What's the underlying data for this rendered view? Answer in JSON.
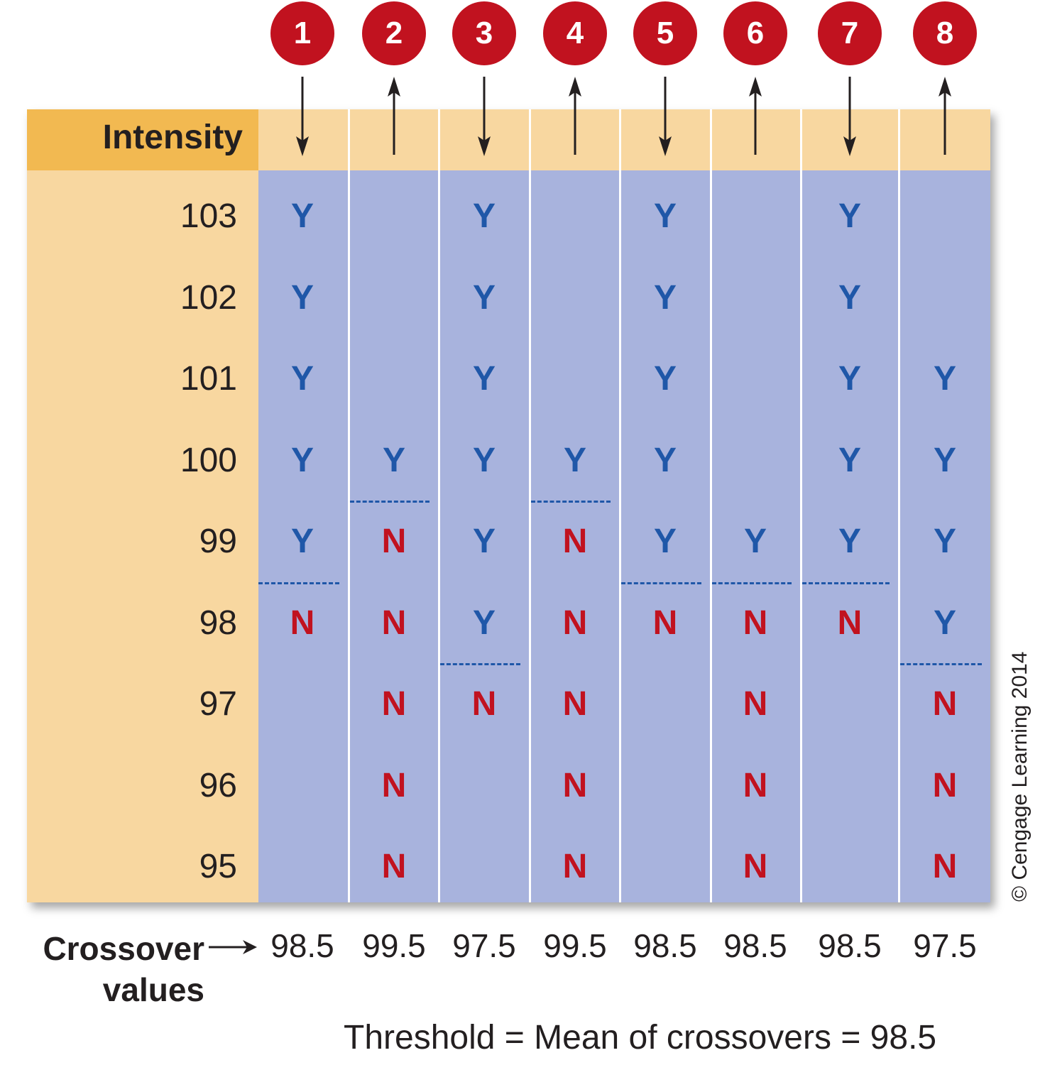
{
  "runs": [
    {
      "number": "1",
      "direction": "down",
      "crossover": "98.5",
      "threshold_row": 98.5,
      "cells": [
        "Y",
        "Y",
        "Y",
        "Y",
        "Y",
        "N",
        "",
        "",
        ""
      ]
    },
    {
      "number": "2",
      "direction": "up",
      "crossover": "99.5",
      "threshold_row": 99.5,
      "cells": [
        "",
        "",
        "",
        "Y",
        "N",
        "N",
        "N",
        "N",
        "N"
      ]
    },
    {
      "number": "3",
      "direction": "down",
      "crossover": "97.5",
      "threshold_row": 97.5,
      "cells": [
        "Y",
        "Y",
        "Y",
        "Y",
        "Y",
        "Y",
        "N",
        "",
        ""
      ]
    },
    {
      "number": "4",
      "direction": "up",
      "crossover": "99.5",
      "threshold_row": 99.5,
      "cells": [
        "",
        "",
        "",
        "Y",
        "N",
        "N",
        "N",
        "N",
        "N"
      ]
    },
    {
      "number": "5",
      "direction": "down",
      "crossover": "98.5",
      "threshold_row": 98.5,
      "cells": [
        "Y",
        "Y",
        "Y",
        "Y",
        "Y",
        "N",
        "",
        "",
        ""
      ]
    },
    {
      "number": "6",
      "direction": "up",
      "crossover": "98.5",
      "threshold_row": 98.5,
      "cells": [
        "",
        "",
        "",
        "",
        "Y",
        "N",
        "N",
        "N",
        "N"
      ]
    },
    {
      "number": "7",
      "direction": "down",
      "crossover": "98.5",
      "threshold_row": 98.5,
      "cells": [
        "Y",
        "Y",
        "Y",
        "Y",
        "Y",
        "N",
        "",
        "",
        ""
      ]
    },
    {
      "number": "8",
      "direction": "up",
      "crossover": "97.5",
      "threshold_row": 97.5,
      "cells": [
        "",
        "",
        "Y",
        "Y",
        "Y",
        "Y",
        "N",
        "N",
        "N"
      ]
    }
  ],
  "intensity_header": "Intensity",
  "intensities": [
    "103",
    "102",
    "101",
    "100",
    "99",
    "98",
    "97",
    "96",
    "95"
  ],
  "crossover_label_line1": "Crossover",
  "crossover_label_line2": "values",
  "threshold_text": "Threshold = Mean of crossovers = 98.5",
  "copyright": "© Cengage Learning 2014",
  "colors": {
    "yes": "#1f57a8",
    "no": "#c1121f",
    "circle": "#c1121f",
    "header": "#f2b951",
    "panel": "#f8d7a0",
    "columns": "#a8b3dd"
  }
}
